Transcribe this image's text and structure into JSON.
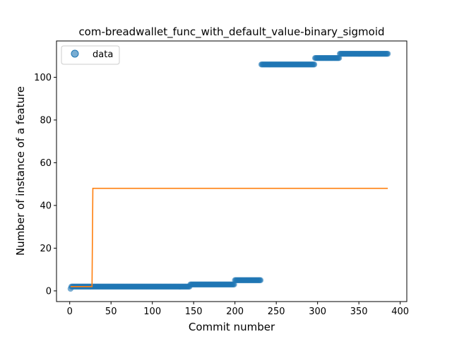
{
  "chart_data": {
    "type": "scatter",
    "title": "com-breadwallet_func_with_default_value-binary_sigmoid",
    "xlabel": "Commit number",
    "ylabel": "Number of instance of a feature",
    "xlim": [
      -16,
      408
    ],
    "ylim": [
      -5,
      117
    ],
    "xticks": [
      0,
      50,
      100,
      150,
      200,
      250,
      300,
      350,
      400
    ],
    "yticks": [
      0,
      20,
      40,
      60,
      80,
      100
    ],
    "grid": false,
    "legend": {
      "placement": "top-left",
      "entries": [
        "data"
      ]
    },
    "colors": {
      "data": "#1f77b4",
      "fit": "#ff7f0e"
    },
    "series": [
      {
        "name": "data",
        "kind": "scatter",
        "segments": [
          {
            "x_start": 1,
            "x_end": 1,
            "y": 1
          },
          {
            "x_start": 2,
            "x_end": 145,
            "y": 2
          },
          {
            "x_start": 146,
            "x_end": 199,
            "y": 3
          },
          {
            "x_start": 200,
            "x_end": 231,
            "y": 5
          },
          {
            "x_start": 232,
            "x_end": 296,
            "y": 106
          },
          {
            "x_start": 297,
            "x_end": 326,
            "y": 109
          },
          {
            "x_start": 327,
            "x_end": 385,
            "y": 111
          }
        ]
      },
      {
        "kind": "line",
        "x": [
          1,
          27,
          27,
          28,
          385
        ],
        "y": [
          2,
          2,
          2,
          48,
          48
        ]
      }
    ]
  }
}
